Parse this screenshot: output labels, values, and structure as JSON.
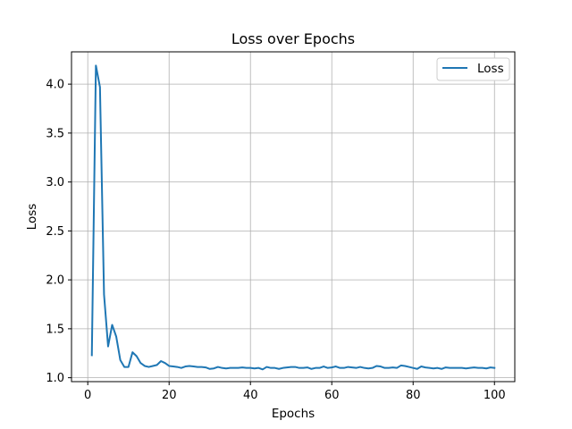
{
  "chart_data": {
    "type": "line",
    "title": "Loss over Epochs",
    "xlabel": "Epochs",
    "ylabel": "Loss",
    "xlim": [
      -4,
      105
    ],
    "ylim": [
      0.96,
      4.33
    ],
    "xticks": [
      0,
      20,
      40,
      60,
      80,
      100
    ],
    "yticks": [
      1.0,
      1.5,
      2.0,
      2.5,
      3.0,
      3.5,
      4.0
    ],
    "ytick_labels": [
      "1.0",
      "1.5",
      "2.0",
      "2.5",
      "3.0",
      "3.5",
      "4.0"
    ],
    "grid": true,
    "legend_position": "upper right",
    "series": [
      {
        "name": "Loss",
        "color": "#1f77b4",
        "x": [
          1,
          2,
          3,
          4,
          5,
          6,
          7,
          8,
          9,
          10,
          11,
          12,
          13,
          14,
          15,
          16,
          17,
          18,
          19,
          20,
          21,
          22,
          23,
          24,
          25,
          26,
          27,
          28,
          29,
          30,
          31,
          32,
          33,
          34,
          35,
          36,
          37,
          38,
          39,
          40,
          41,
          42,
          43,
          44,
          45,
          46,
          47,
          48,
          49,
          50,
          51,
          52,
          53,
          54,
          55,
          56,
          57,
          58,
          59,
          60,
          61,
          62,
          63,
          64,
          65,
          66,
          67,
          68,
          69,
          70,
          71,
          72,
          73,
          74,
          75,
          76,
          77,
          78,
          79,
          80,
          81,
          82,
          83,
          84,
          85,
          86,
          87,
          88,
          89,
          90,
          91,
          92,
          93,
          94,
          95,
          96,
          97,
          98,
          99,
          100
        ],
        "values": [
          1.23,
          4.19,
          3.97,
          1.85,
          1.32,
          1.54,
          1.42,
          1.18,
          1.11,
          1.11,
          1.26,
          1.22,
          1.15,
          1.12,
          1.11,
          1.12,
          1.13,
          1.17,
          1.15,
          1.12,
          1.115,
          1.11,
          1.1,
          1.115,
          1.12,
          1.115,
          1.11,
          1.11,
          1.105,
          1.09,
          1.095,
          1.11,
          1.1,
          1.095,
          1.1,
          1.1,
          1.1,
          1.105,
          1.1,
          1.1,
          1.095,
          1.1,
          1.085,
          1.11,
          1.1,
          1.1,
          1.09,
          1.1,
          1.105,
          1.11,
          1.11,
          1.1,
          1.1,
          1.105,
          1.09,
          1.1,
          1.1,
          1.115,
          1.1,
          1.105,
          1.115,
          1.1,
          1.1,
          1.11,
          1.105,
          1.1,
          1.11,
          1.1,
          1.095,
          1.1,
          1.12,
          1.115,
          1.1,
          1.1,
          1.105,
          1.1,
          1.125,
          1.12,
          1.11,
          1.1,
          1.09,
          1.115,
          1.105,
          1.1,
          1.095,
          1.1,
          1.09,
          1.105,
          1.1,
          1.1,
          1.1,
          1.1,
          1.095,
          1.1,
          1.105,
          1.1,
          1.1,
          1.095,
          1.105,
          1.1
        ]
      }
    ]
  }
}
